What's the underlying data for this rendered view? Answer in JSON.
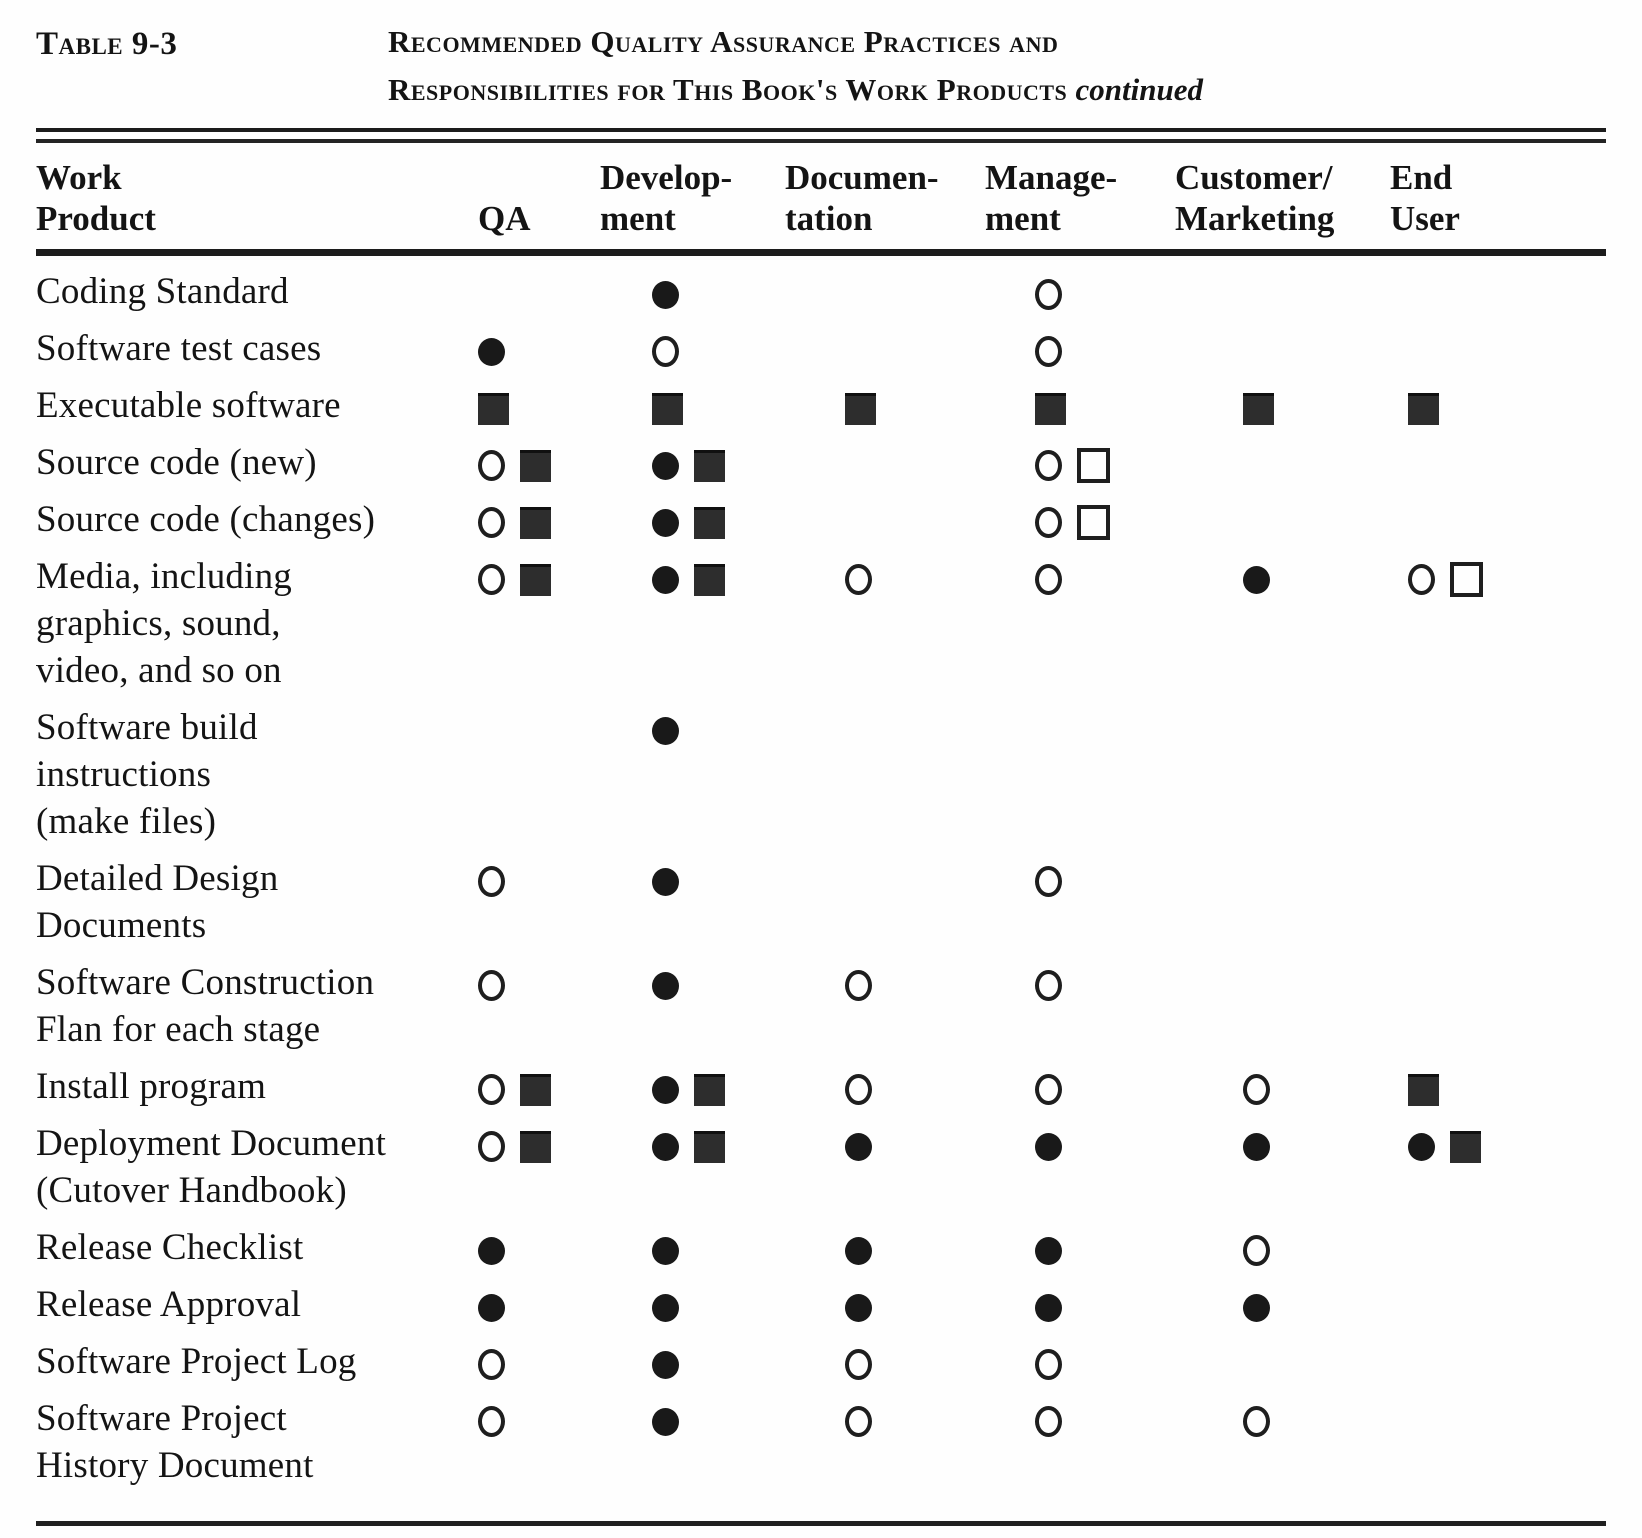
{
  "caption": {
    "label": "Table 9-3",
    "title_line1": "Recommended Quality Assurance Practices and",
    "title_line2": "Responsibilities for This Book's Work Products",
    "continued": "continued"
  },
  "symbols_used": [
    "filled-circle",
    "open-circle",
    "filled-square",
    "open-square"
  ],
  "ink_color": "#1c1c1c",
  "square_color": "#2d2d2d",
  "table": {
    "columns": [
      {
        "id": "work_product",
        "label": "Work\nProduct"
      },
      {
        "id": "qa",
        "label": "QA"
      },
      {
        "id": "development",
        "label": "Develop-\nment"
      },
      {
        "id": "documentation",
        "label": "Documen-\ntation"
      },
      {
        "id": "management",
        "label": "Manage-\nment"
      },
      {
        "id": "customer_marketing",
        "label": "Customer/\nMarketing"
      },
      {
        "id": "end_user",
        "label": "End\nUser"
      }
    ],
    "rows": [
      {
        "product": "Coding Standard",
        "symbols": [
          [],
          [
            "filled-circle"
          ],
          [],
          [
            "open-circle"
          ],
          [],
          []
        ]
      },
      {
        "product": "Software test cases",
        "symbols": [
          [
            "filled-circle"
          ],
          [
            "open-circle"
          ],
          [],
          [
            "open-circle"
          ],
          [],
          []
        ]
      },
      {
        "product": "Executable software",
        "symbols": [
          [
            "filled-square"
          ],
          [
            "filled-square"
          ],
          [
            "filled-square"
          ],
          [
            "filled-square"
          ],
          [
            "filled-square"
          ],
          [
            "filled-square"
          ]
        ]
      },
      {
        "product": "Source code (new)",
        "symbols": [
          [
            "open-circle",
            "filled-square"
          ],
          [
            "filled-circle",
            "filled-square"
          ],
          [],
          [
            "open-circle",
            "open-square"
          ],
          [],
          []
        ]
      },
      {
        "product": "Source code (changes)",
        "symbols": [
          [
            "open-circle",
            "filled-square"
          ],
          [
            "filled-circle",
            "filled-square"
          ],
          [],
          [
            "open-circle",
            "open-square"
          ],
          [],
          []
        ]
      },
      {
        "product": "Media, including\ngraphics, sound,\nvideo, and so on",
        "symbols": [
          [
            "open-circle",
            "filled-square"
          ],
          [
            "filled-circle",
            "filled-square"
          ],
          [
            "open-circle"
          ],
          [
            "open-circle"
          ],
          [
            "filled-circle"
          ],
          [
            "open-circle",
            "open-square"
          ]
        ]
      },
      {
        "product": "Software  build\ninstructions\n(make files)",
        "symbols": [
          [],
          [
            "filled-circle"
          ],
          [],
          [],
          [],
          []
        ]
      },
      {
        "product": "Detailed  Design\nDocuments",
        "symbols": [
          [
            "open-circle"
          ],
          [
            "filled-circle"
          ],
          [],
          [
            "open-circle"
          ],
          [],
          []
        ]
      },
      {
        "product": "Software   Construction\nFlan for each stage",
        "symbols": [
          [
            "open-circle"
          ],
          [
            "filled-circle"
          ],
          [
            "open-circle"
          ],
          [
            "open-circle"
          ],
          [],
          []
        ]
      },
      {
        "product": "Install program",
        "symbols": [
          [
            "open-circle",
            "filled-square"
          ],
          [
            "filled-circle",
            "filled-square"
          ],
          [
            "open-circle"
          ],
          [
            "open-circle"
          ],
          [
            "open-circle"
          ],
          [
            "filled-square"
          ]
        ]
      },
      {
        "product": "Deployment Document\n(Cutover  Handbook)",
        "symbols": [
          [
            "open-circle",
            "filled-square"
          ],
          [
            "filled-circle",
            "filled-square"
          ],
          [
            "filled-circle"
          ],
          [
            "filled-circle"
          ],
          [
            "filled-circle"
          ],
          [
            "filled-circle",
            "filled-square"
          ]
        ]
      },
      {
        "product": "Release  Checklist",
        "symbols": [
          [
            "filled-circle"
          ],
          [
            "filled-circle"
          ],
          [
            "filled-circle"
          ],
          [
            "filled-circle"
          ],
          [
            "open-circle"
          ],
          []
        ]
      },
      {
        "product": "Release   Approval",
        "symbols": [
          [
            "filled-circle"
          ],
          [
            "filled-circle"
          ],
          [
            "filled-circle"
          ],
          [
            "filled-circle"
          ],
          [
            "filled-circle"
          ],
          []
        ]
      },
      {
        "product": "Software  Project Log",
        "symbols": [
          [
            "open-circle"
          ],
          [
            "filled-circle"
          ],
          [
            "open-circle"
          ],
          [
            "open-circle"
          ],
          [],
          []
        ]
      },
      {
        "product": "Software  Project\nHistory Document",
        "symbols": [
          [
            "open-circle"
          ],
          [
            "filled-circle"
          ],
          [
            "open-circle"
          ],
          [
            "open-circle"
          ],
          [
            "open-circle"
          ],
          []
        ]
      }
    ]
  }
}
